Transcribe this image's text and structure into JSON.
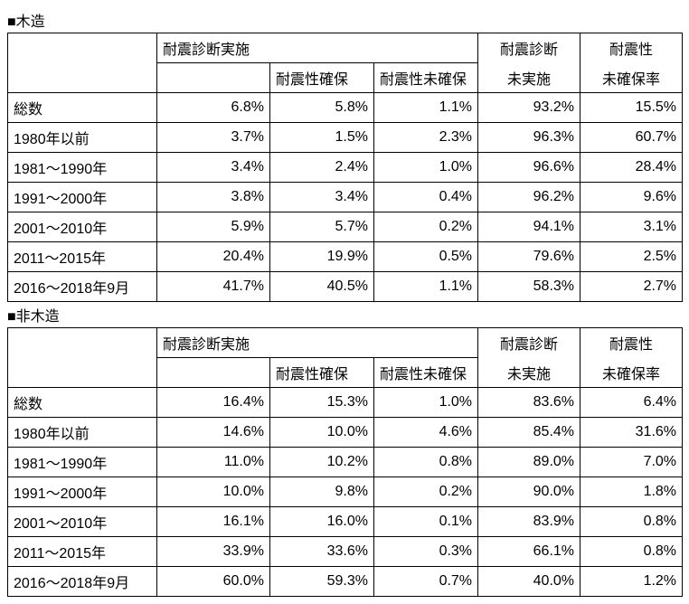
{
  "sections": [
    {
      "title": "■木造",
      "headers": {
        "group": "耐震診断実施",
        "sub_blank": "",
        "sub_secure": "耐震性確保",
        "sub_unsecure": "耐震性未確保",
        "not_done_l1": "耐震診断",
        "not_done_l2": "未実施",
        "unsecure_rate_l1": "耐震性",
        "unsecure_rate_l2": "未確保率"
      },
      "rows": [
        {
          "label": "総数",
          "vals": [
            "6.8%",
            "5.8%",
            "1.1%",
            "93.2%",
            "15.5%"
          ]
        },
        {
          "label": "1980年以前",
          "vals": [
            "3.7%",
            "1.5%",
            "2.3%",
            "96.3%",
            "60.7%"
          ]
        },
        {
          "label": "1981～1990年",
          "vals": [
            "3.4%",
            "2.4%",
            "1.0%",
            "96.6%",
            "28.4%"
          ]
        },
        {
          "label": "1991～2000年",
          "vals": [
            "3.8%",
            "3.4%",
            "0.4%",
            "96.2%",
            "9.6%"
          ]
        },
        {
          "label": "2001～2010年",
          "vals": [
            "5.9%",
            "5.7%",
            "0.2%",
            "94.1%",
            "3.1%"
          ]
        },
        {
          "label": "2011～2015年",
          "vals": [
            "20.4%",
            "19.9%",
            "0.5%",
            "79.6%",
            "2.5%"
          ]
        },
        {
          "label": "2016～2018年9月",
          "vals": [
            "41.7%",
            "40.5%",
            "1.1%",
            "58.3%",
            "2.7%"
          ]
        }
      ]
    },
    {
      "title": "■非木造",
      "headers": {
        "group": "耐震診断実施",
        "sub_blank": "",
        "sub_secure": "耐震性確保",
        "sub_unsecure": "耐震性未確保",
        "not_done_l1": "耐震診断",
        "not_done_l2": "未実施",
        "unsecure_rate_l1": "耐震性",
        "unsecure_rate_l2": "未確保率"
      },
      "rows": [
        {
          "label": "総数",
          "vals": [
            "16.4%",
            "15.3%",
            "1.0%",
            "83.6%",
            "6.4%"
          ]
        },
        {
          "label": "1980年以前",
          "vals": [
            "14.6%",
            "10.0%",
            "4.6%",
            "85.4%",
            "31.6%"
          ]
        },
        {
          "label": "1981～1990年",
          "vals": [
            "11.0%",
            "10.2%",
            "0.8%",
            "89.0%",
            "7.0%"
          ]
        },
        {
          "label": "1991～2000年",
          "vals": [
            "10.0%",
            "9.8%",
            "0.2%",
            "90.0%",
            "1.8%"
          ]
        },
        {
          "label": "2001～2010年",
          "vals": [
            "16.1%",
            "16.0%",
            "0.1%",
            "83.9%",
            "0.8%"
          ]
        },
        {
          "label": "2011～2015年",
          "vals": [
            "33.9%",
            "33.6%",
            "0.3%",
            "66.1%",
            "0.8%"
          ]
        },
        {
          "label": "2016～2018年9月",
          "vals": [
            "60.0%",
            "59.3%",
            "0.7%",
            "40.0%",
            "1.2%"
          ]
        }
      ]
    }
  ]
}
